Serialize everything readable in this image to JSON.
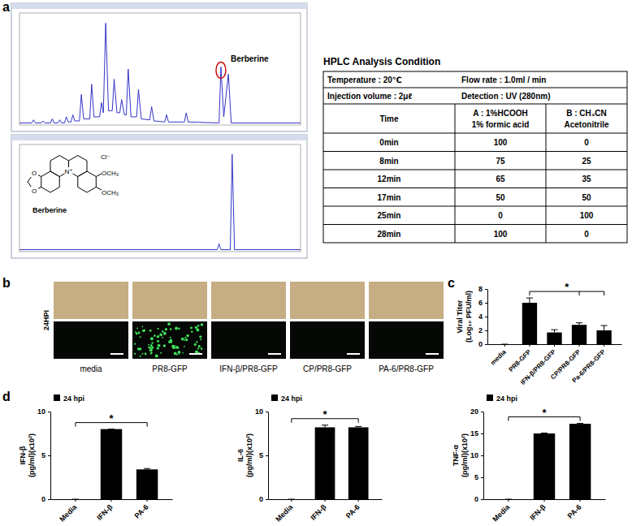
{
  "panel_labels": [
    "a",
    "b",
    "c",
    "d"
  ],
  "chart_data": [
    {
      "type": "line",
      "color": "#3535c8",
      "xlim": [
        0,
        30
      ],
      "ylim": [
        0,
        110
      ],
      "tick_labels": false,
      "x": [
        0,
        1.3,
        1.5,
        1.7,
        2.3,
        2.5,
        2.7,
        3.3,
        3.5,
        3.7,
        4.1,
        4.3,
        4.5,
        4.8,
        5,
        5.2,
        5.5,
        5.7,
        5.9,
        6.4,
        6.6,
        6.85,
        7.5,
        7.7,
        7.95,
        8.55,
        8.75,
        8.95,
        9.2,
        9.5,
        9.9,
        10.1,
        10.4,
        10.7,
        10.9,
        11.2,
        11.4,
        11.6,
        11.9,
        12.5,
        12.7,
        13,
        13.9,
        14.1,
        14.35,
        15.5,
        15.7,
        15.9,
        17.6,
        17.8,
        18,
        21.3,
        21.5,
        21.8,
        22.3,
        22.6,
        30
      ],
      "values": [
        2,
        2,
        5,
        2,
        2,
        4,
        2,
        2,
        6,
        2,
        2,
        5,
        2,
        2,
        8,
        3,
        3,
        10,
        4,
        4,
        30,
        6,
        6,
        40,
        8,
        8,
        22,
        12,
        100,
        14,
        14,
        45,
        12,
        12,
        25,
        10,
        10,
        55,
        8,
        8,
        35,
        6,
        5,
        18,
        4,
        3,
        10,
        3,
        3,
        12,
        3,
        2,
        57,
        8,
        50,
        2,
        2
      ],
      "annotation": {
        "text": "Berberine",
        "x": 21.5
      }
    },
    {
      "type": "line",
      "color": "#3535c8",
      "xlim": [
        0,
        30
      ],
      "ylim": [
        0,
        110
      ],
      "tick_labels": false,
      "x": [
        0,
        21.1,
        21.3,
        21.5,
        22.5,
        22.7,
        22.95,
        30
      ],
      "values": [
        2,
        2,
        8,
        2,
        2,
        100,
        2,
        2
      ]
    },
    {
      "type": "bar",
      "categories": [
        "media",
        "PR8-GFP",
        "IFN-β/PR8-GFP",
        "CP/PR8-GFP",
        "Pa-6/PR8-GFP"
      ],
      "values": [
        0,
        6,
        1.7,
        2.8,
        2
      ],
      "error": [
        0,
        0.7,
        0.4,
        0.3,
        0.7
      ],
      "color": "#000000",
      "ylim": [
        0,
        8
      ],
      "yticks": [
        0,
        2,
        4,
        6,
        8
      ],
      "y_label": [
        "Viral Titer",
        "(Log₁₀ PFU/ml)"
      ],
      "significance": {
        "from": "PR8-GFP",
        "to": [
          "CP/PR8-GFP",
          "Pa-6/PR8-GFP"
        ],
        "label": "*"
      }
    },
    {
      "type": "bar",
      "categories": [
        "Media",
        "IFN-β",
        "PA-6"
      ],
      "series": [
        {
          "name": "24 hpi",
          "color": "#000000",
          "values": [
            0,
            8,
            3.4
          ],
          "error": [
            0,
            0,
            0.1
          ]
        }
      ],
      "legend": "top-left",
      "ylim": [
        0,
        10
      ],
      "yticks": [
        0,
        5,
        10
      ],
      "y_label": [
        "IFN-β",
        "(pg/ml)(x10²)"
      ],
      "significance": {
        "from": "Media",
        "to": [
          "PA-6"
        ],
        "label": "*"
      }
    },
    {
      "type": "bar",
      "categories": [
        "Media",
        "IFN-β",
        "PA-6"
      ],
      "series": [
        {
          "name": "24 hpi",
          "color": "#000000",
          "values": [
            0,
            8.2,
            8.2
          ],
          "error": [
            0,
            0.25,
            0.1
          ]
        }
      ],
      "legend": "top-left",
      "ylim": [
        0,
        10
      ],
      "yticks": [
        0,
        5,
        10
      ],
      "y_label": [
        "IL-6",
        "(pg/ml)(x10²)"
      ],
      "significance": {
        "from": "Media",
        "to": [
          "PA-6"
        ],
        "label": "*"
      }
    },
    {
      "type": "bar",
      "categories": [
        "Media",
        "IFN-β",
        "PA-6"
      ],
      "series": [
        {
          "name": "24 hpi",
          "color": "#000000",
          "values": [
            0,
            15,
            17.2
          ],
          "error": [
            0,
            0.1,
            0.1
          ]
        }
      ],
      "legend": "top-left",
      "ylim": [
        0,
        20
      ],
      "yticks": [
        0,
        5,
        10,
        15,
        20
      ],
      "y_label": [
        "TNF-α",
        "(pg/ml)(x10²)"
      ],
      "significance": {
        "from": "Media",
        "to": [
          "PA-6"
        ],
        "label": "*"
      }
    }
  ],
  "structure": {
    "name": "Berberine",
    "atoms": [
      "O",
      "O",
      "N⁺",
      "Cl⁻",
      "OCH₃",
      "OCH₃"
    ]
  },
  "table": {
    "title": "HPLC Analysis Condition",
    "conditions": [
      [
        "Temperature : 20℃",
        "Flow rate : 1.0ml / min"
      ],
      [
        "Injection volume : 2μℓ",
        "Detection : UV (280nm)"
      ]
    ],
    "header": [
      [
        "Time"
      ],
      [
        "A : 1%HCOOH",
        "1% formic acid"
      ],
      [
        "B : CH₃CN",
        "Acetonitrile"
      ]
    ],
    "rows": [
      [
        "0min",
        100,
        0
      ],
      [
        "8min",
        75,
        25
      ],
      [
        "12min",
        65,
        35
      ],
      [
        "17min",
        50,
        50
      ],
      [
        "25min",
        0,
        100
      ],
      [
        "28min",
        100,
        0
      ]
    ]
  },
  "images": {
    "row_label": "24HPI",
    "labels": [
      "media",
      "PR8-GFP",
      "IFN-β/PR8-GFP",
      "CP/PR8-GFP",
      "PA-6/PR8-GFP"
    ],
    "green_signal": [
      false,
      true,
      false,
      false,
      false
    ]
  }
}
